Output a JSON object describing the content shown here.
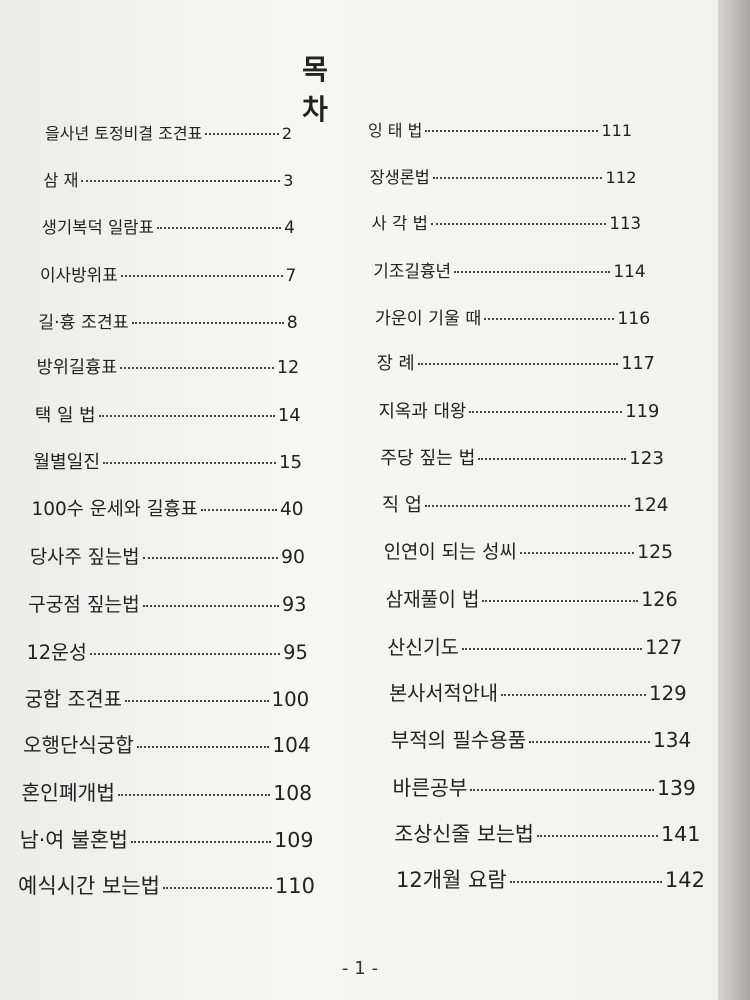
{
  "title": "목 차",
  "left": [
    {
      "text": "을사년 토정비결 조견표",
      "page": 2
    },
    {
      "text": "삼 재",
      "page": 3
    },
    {
      "text": "생기복덕 일람표",
      "page": 4
    },
    {
      "text": "이사방위표",
      "page": 7
    },
    {
      "text": "길·흉 조견표",
      "page": 8
    },
    {
      "text": "방위길흉표",
      "page": 12
    },
    {
      "text": "택 일 법",
      "page": 14
    },
    {
      "text": "월별일진",
      "page": 15
    },
    {
      "text": "100수 운세와 길흉표",
      "page": 40
    },
    {
      "text": "당사주 짚는법",
      "page": 90
    },
    {
      "text": "구궁점 짚는법",
      "page": 93
    },
    {
      "text": "12운성",
      "page": 95
    },
    {
      "text": "궁합 조견표",
      "page": 100
    },
    {
      "text": "오행단식궁합",
      "page": 104
    },
    {
      "text": "혼인폐개법",
      "page": 108
    },
    {
      "text": "남·여 불혼법",
      "page": 109
    },
    {
      "text": "예식시간 보는법",
      "page": 110
    }
  ],
  "right": [
    {
      "text": "잉 태 법",
      "page": 111
    },
    {
      "text": "장생론법",
      "page": 112
    },
    {
      "text": "사 각 법",
      "page": 113
    },
    {
      "text": "기조길흉년",
      "page": 114
    },
    {
      "text": "가운이 기울 때",
      "page": 116
    },
    {
      "text": "장 례",
      "page": 117
    },
    {
      "text": "지옥과 대왕",
      "page": 119
    },
    {
      "text": "주당 짚는 법",
      "page": 123
    },
    {
      "text": "직 업",
      "page": 124
    },
    {
      "text": "인연이 되는 성씨",
      "page": 125
    },
    {
      "text": "삼재풀이 법",
      "page": 126
    },
    {
      "text": "산신기도",
      "page": 127
    },
    {
      "text": "본사서적안내",
      "page": 129
    },
    {
      "text": "부적의 필수용품",
      "page": 134
    },
    {
      "text": "바른공부",
      "page": 139
    },
    {
      "text": "조상신줄 보는법",
      "page": 141
    },
    {
      "text": "12개월 요람",
      "page": 142
    }
  ],
  "footer": "- 1 -"
}
